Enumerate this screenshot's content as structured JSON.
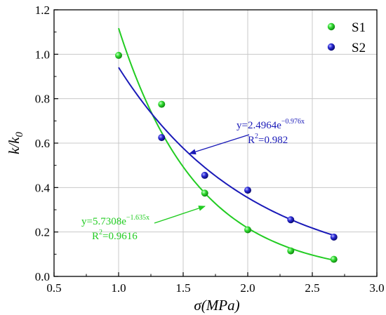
{
  "chart_data": {
    "type": "scatter",
    "x_axis": {
      "label_main": "σ",
      "label_unit": "(MPa)",
      "range": [
        0.5,
        3.0
      ],
      "ticks": [
        0.5,
        1.0,
        1.5,
        2.0,
        2.5,
        3.0
      ],
      "tick_labels": [
        "0.5",
        "1.0",
        "1.5",
        "2.0",
        "2.5",
        "3.0"
      ]
    },
    "y_axis": {
      "label_main": "k/k",
      "label_sub": "0",
      "range": [
        0.0,
        1.2
      ],
      "ticks": [
        0.0,
        0.2,
        0.4,
        0.6,
        0.8,
        1.0,
        1.2
      ],
      "tick_labels": [
        "0.0",
        "0.2",
        "0.4",
        "0.6",
        "0.8",
        "1.0",
        "1.2"
      ]
    },
    "grid": true,
    "legend_position": "top-right",
    "series": [
      {
        "name": "S1",
        "color": "#22cc22",
        "points": [
          [
            1.0,
            0.995
          ],
          [
            1.333,
            0.775
          ],
          [
            1.667,
            0.375
          ],
          [
            2.0,
            0.21
          ],
          [
            2.333,
            0.115
          ],
          [
            2.667,
            0.077
          ]
        ],
        "fit": {
          "a": 5.7308,
          "b": -1.635,
          "x_range": [
            1.0,
            2.667
          ]
        },
        "annotation": {
          "eq_base": "y=5.7308e",
          "eq_exp": "−1.635x",
          "r2_base": "R",
          "r2_exp": "2",
          "r2_val": "=0.9616"
        }
      },
      {
        "name": "S2",
        "color": "#1a1ab8",
        "points": [
          [
            1.333,
            0.625
          ],
          [
            1.667,
            0.455
          ],
          [
            2.0,
            0.388
          ],
          [
            2.333,
            0.255
          ],
          [
            2.667,
            0.177
          ]
        ],
        "fit": {
          "a": 2.4964,
          "b": -0.976,
          "x_range": [
            1.0,
            2.667
          ]
        },
        "annotation": {
          "eq_base": "y=2.4964e",
          "eq_exp": "−0.976x",
          "r2_base": "R",
          "r2_exp": "2",
          "r2_val": "=0.982"
        }
      }
    ]
  }
}
